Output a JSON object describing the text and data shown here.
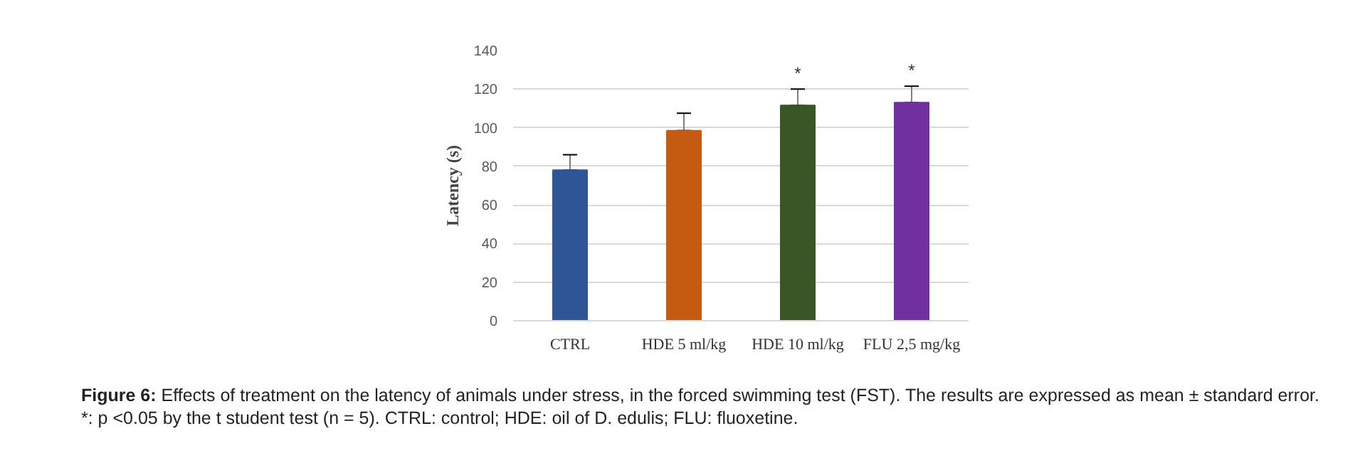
{
  "chart_data": {
    "type": "bar",
    "ylabel": "Latency (s)",
    "categories": [
      "CTRL",
      "HDE 5 ml/kg",
      "HDE 10 ml/kg",
      "FLU 2,5 mg/kg"
    ],
    "values": [
      78,
      98.5,
      111.5,
      113
    ],
    "errors": [
      [
        78,
        86
      ],
      [
        98.5,
        107.5
      ],
      [
        111.5,
        120
      ],
      [
        113,
        121.5
      ]
    ],
    "colors": [
      "#2f5597",
      "#c55a11",
      "#375623",
      "#7030a0"
    ],
    "ylim": [
      0,
      140
    ],
    "yticks": [
      0,
      20,
      40,
      60,
      80,
      100,
      120,
      140
    ],
    "grid": "y",
    "annotations": [
      {
        "text": "*",
        "x": "HDE 10 ml/kg",
        "y": 123
      },
      {
        "text": "*",
        "x": "FLU 2,5 mg/kg",
        "y": 124.5
      },
      "Figure 6: Effects of treatment on the latency of animals under stress, in the forced swimming test (FST). The results are expressed as mean ± standard error. *: p <0.05 by the t student test (n = 5). CTRL: control; HDE: oil of D. edulis; FLU: fluoxetine."
    ]
  }
}
